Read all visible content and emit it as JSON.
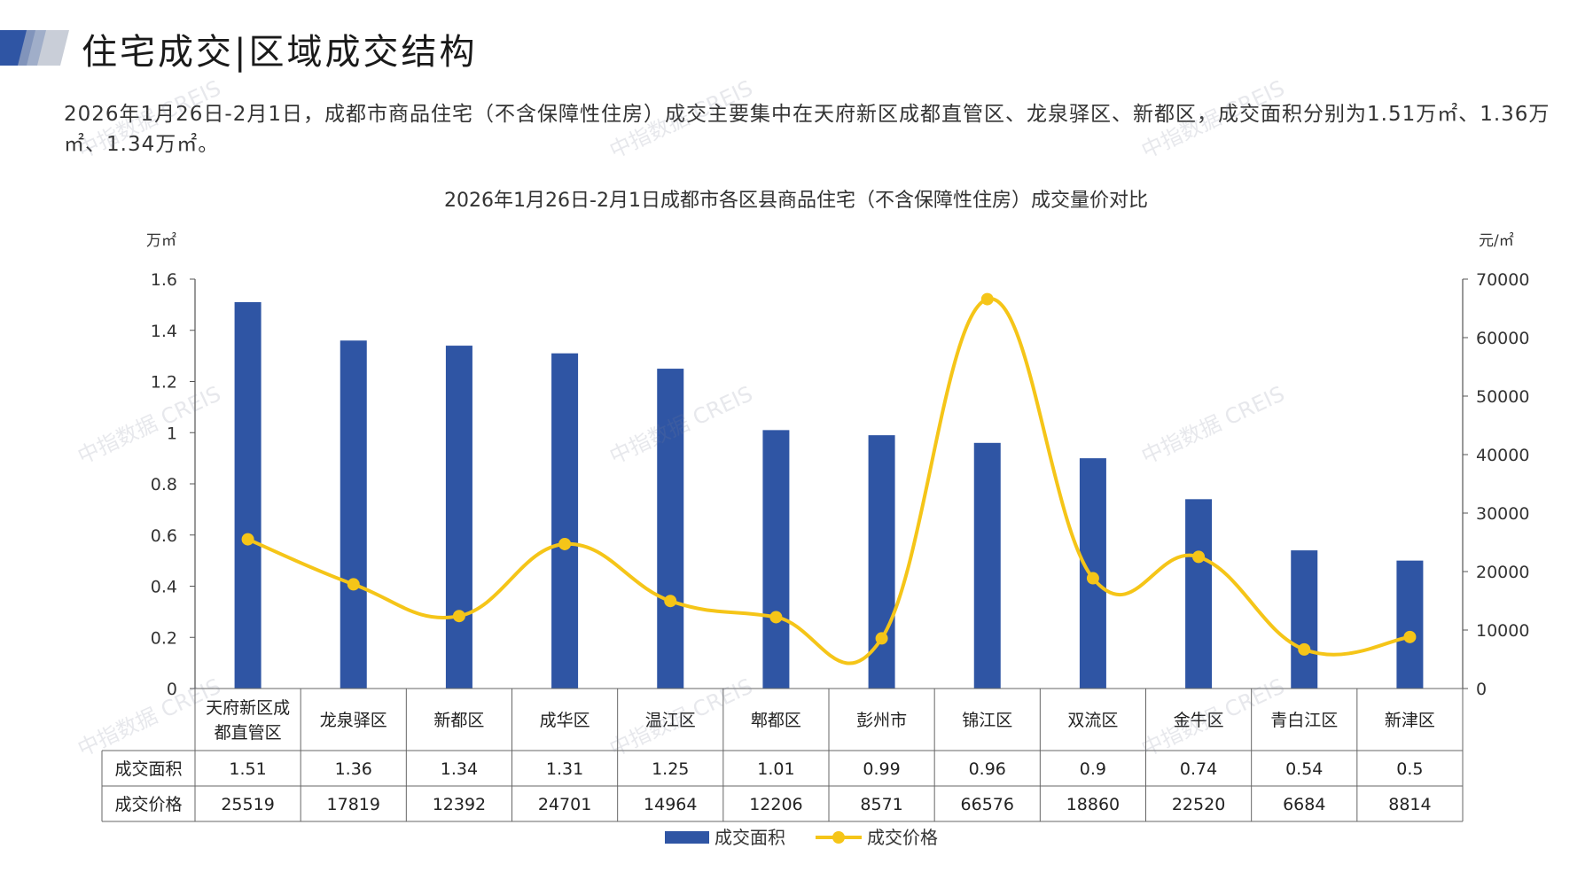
{
  "page": {
    "title": "住宅成交|区域成交结构",
    "summary": "2026年1月26日-2月1日，成都市商品住宅（不含保障性住房）成交主要集中在天府新区成都直管区、龙泉驿区、新都区，成交面积分别为1.51万㎡、1.36万㎡、1.34万㎡。",
    "watermark": "中指数据 CREIS"
  },
  "chart_data": {
    "type": "bar+line",
    "title": "2026年1月26日-2月1日成都市各区县商品住宅（不含保障性住房）成交量价对比",
    "categories": [
      "天府新区成都直管区",
      "龙泉驿区",
      "新都区",
      "成华区",
      "温江区",
      "郫都区",
      "彭州市",
      "锦江区",
      "双流区",
      "金牛区",
      "青白江区",
      "新津区"
    ],
    "category_lines": [
      [
        "天府新区成",
        "都直管区"
      ],
      [
        "龙泉驿区"
      ],
      [
        "新都区"
      ],
      [
        "成华区"
      ],
      [
        "温江区"
      ],
      [
        "郫都区"
      ],
      [
        "彭州市"
      ],
      [
        "锦江区"
      ],
      [
        "双流区"
      ],
      [
        "金牛区"
      ],
      [
        "青白江区"
      ],
      [
        "新津区"
      ]
    ],
    "series": [
      {
        "name": "成交面积",
        "type": "bar",
        "axis": "left",
        "color": "#2f55a4",
        "values": [
          1.51,
          1.36,
          1.34,
          1.31,
          1.25,
          1.01,
          0.99,
          0.96,
          0.9,
          0.74,
          0.54,
          0.5
        ],
        "labels": [
          "1.51",
          "1.36",
          "1.34",
          "1.31",
          "1.25",
          "1.01",
          "0.99",
          "0.96",
          "0.9",
          "0.74",
          "0.54",
          "0.5"
        ]
      },
      {
        "name": "成交价格",
        "type": "line",
        "axis": "right",
        "color": "#f5c518",
        "values": [
          25519,
          17819,
          12392,
          24701,
          14964,
          12206,
          8571,
          66576,
          18860,
          22520,
          6684,
          8814
        ],
        "labels": [
          "25519",
          "17819",
          "12392",
          "24701",
          "14964",
          "12206",
          "8571",
          "66576",
          "18860",
          "22520",
          "6684",
          "8814"
        ]
      }
    ],
    "y_left": {
      "unit": "万㎡",
      "min": 0,
      "max": 1.6,
      "ticks": [
        "0",
        "0.2",
        "0.4",
        "0.6",
        "0.8",
        "1",
        "1.2",
        "1.4",
        "1.6"
      ]
    },
    "y_right": {
      "unit": "元/㎡",
      "min": 0,
      "max": 70000,
      "ticks": [
        "0",
        "10000",
        "20000",
        "30000",
        "40000",
        "50000",
        "60000",
        "70000"
      ]
    },
    "legend": {
      "position": "bottom",
      "items": [
        "成交面积",
        "成交价格"
      ]
    },
    "grid": false,
    "data_table": true
  }
}
